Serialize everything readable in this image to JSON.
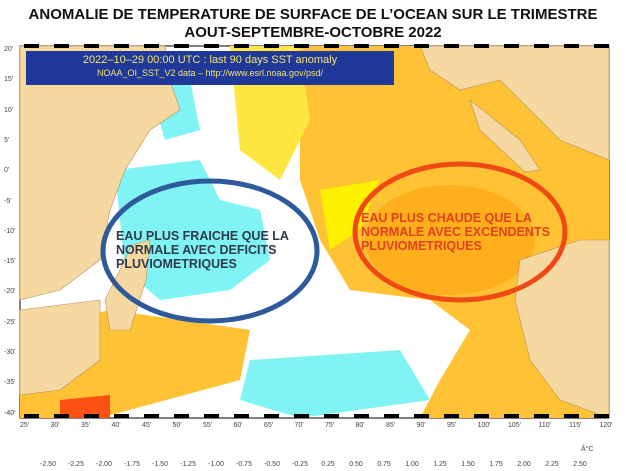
{
  "title": {
    "line1": "ANOMALIE DE TEMPERATURE DE SURFACE DE L’OCEAN SUR LE TRIMESTRE",
    "line2": "AOUT-SEPTEMBRE-OCTOBRE 2022"
  },
  "banner": {
    "line1": "2022–10–29 00:00 UTC : last 90 days SST anomaly",
    "line2": "NOAA_OI_SST_V2 data – http://www.esrl.noaa.gov/psd/"
  },
  "annotations": {
    "cold": {
      "text": "EAU PLUS FRAICHE QUE LA NORMALE AVEC DEFICITS PLUVIOMETRIQUES",
      "color": "#2e5a9c"
    },
    "warm": {
      "text": "EAU PLUS CHAUDE QUE LA NORMALE AVEC EXCENDENTS PLUVIOMETRIQUES",
      "color": "#f04a14"
    }
  },
  "axes": {
    "lat_labels": [
      "20'",
      "15'",
      "10'",
      "5'",
      "0'",
      "-5'",
      "-10'",
      "-15'",
      "-20'",
      "-25'",
      "-30'",
      "-35'",
      "-40'"
    ],
    "lon_labels": [
      "25'",
      "30'",
      "35'",
      "40'",
      "45'",
      "50'",
      "55'",
      "60'",
      "65'",
      "70'",
      "75'",
      "80'",
      "85'",
      "90'",
      "95'",
      "100'",
      "105'",
      "110'",
      "115'",
      "120'"
    ]
  },
  "colorbar": {
    "unit": "Â°C",
    "ticks": [
      "-2.50",
      "-2.25",
      "-2.00",
      "-1.75",
      "-1.50",
      "-1.25",
      "-1.00",
      "-0.75",
      "-0.50",
      "-0.25",
      "0.25",
      "0.50",
      "0.75",
      "1.00",
      "1.25",
      "1.50",
      "1.75",
      "2.00",
      "2.25",
      "2.50"
    ],
    "colors": [
      "#2a5ef0",
      "#2e8ef0",
      "#3399f2",
      "#33aaf2",
      "#19c3f0",
      "#3ff0f0",
      "#66f5f5",
      "#80f8f8",
      "#88f8f8",
      "#ffffff",
      "#fff000",
      "#ffb400",
      "#ffb400",
      "#ffa000",
      "#ff8c00",
      "#ff7814",
      "#ff5a14",
      "#ff4614",
      "#ff0000"
    ]
  }
}
